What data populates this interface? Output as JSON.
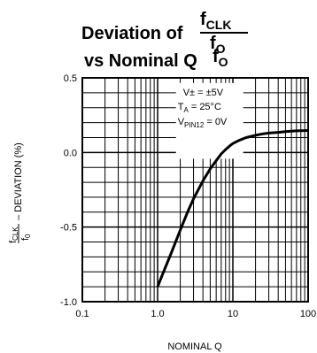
{
  "chart_data": {
    "type": "line",
    "title": {
      "line1": "Deviation of",
      "line2": "vs Nominal Q",
      "frac_num": "f",
      "frac_num_sub": "CLK",
      "frac_den": "f",
      "frac_den_sub": "O",
      "tail": "f",
      "tail_sub": "O"
    },
    "xlabel": "NOMINAL Q",
    "ylabel": {
      "frac_num": "f",
      "frac_num_sub": "CLK",
      "frac_den": "f",
      "frac_den_sub": "0",
      "text": "– DEVIATION (%)"
    },
    "x_scale": "log",
    "xlim": [
      0.1,
      100
    ],
    "ylim": [
      -1.0,
      0.5
    ],
    "x_tick_labels": [
      "0.1",
      "1.0",
      "10",
      "100"
    ],
    "y_tick_labels": [
      "0.5",
      "0.0",
      "-0.5",
      "-1.0"
    ],
    "grid": true,
    "annotations": {
      "line1": "V± = ±5V",
      "line2_main": "T",
      "line2_sub": "A",
      "line2_rest": " = 25°C",
      "line3_main": "V",
      "line3_sub": "PIN12",
      "line3_rest": " = 0V"
    },
    "series": [
      {
        "x": [
          1.0,
          1.2,
          1.5,
          2.0,
          2.5,
          3.0,
          4.0,
          5.0,
          6.0,
          7.0,
          8.0,
          9.0,
          10.0,
          12.0,
          15.0,
          20.0,
          25.0,
          30.0,
          40.0,
          50.0,
          70.0,
          100.0
        ],
        "y": [
          -0.9,
          -0.8,
          -0.68,
          -0.52,
          -0.4,
          -0.31,
          -0.19,
          -0.11,
          -0.055,
          -0.01,
          0.02,
          0.042,
          0.06,
          0.08,
          0.1,
          0.115,
          0.125,
          0.13,
          0.135,
          0.14,
          0.145,
          0.147
        ]
      }
    ]
  }
}
